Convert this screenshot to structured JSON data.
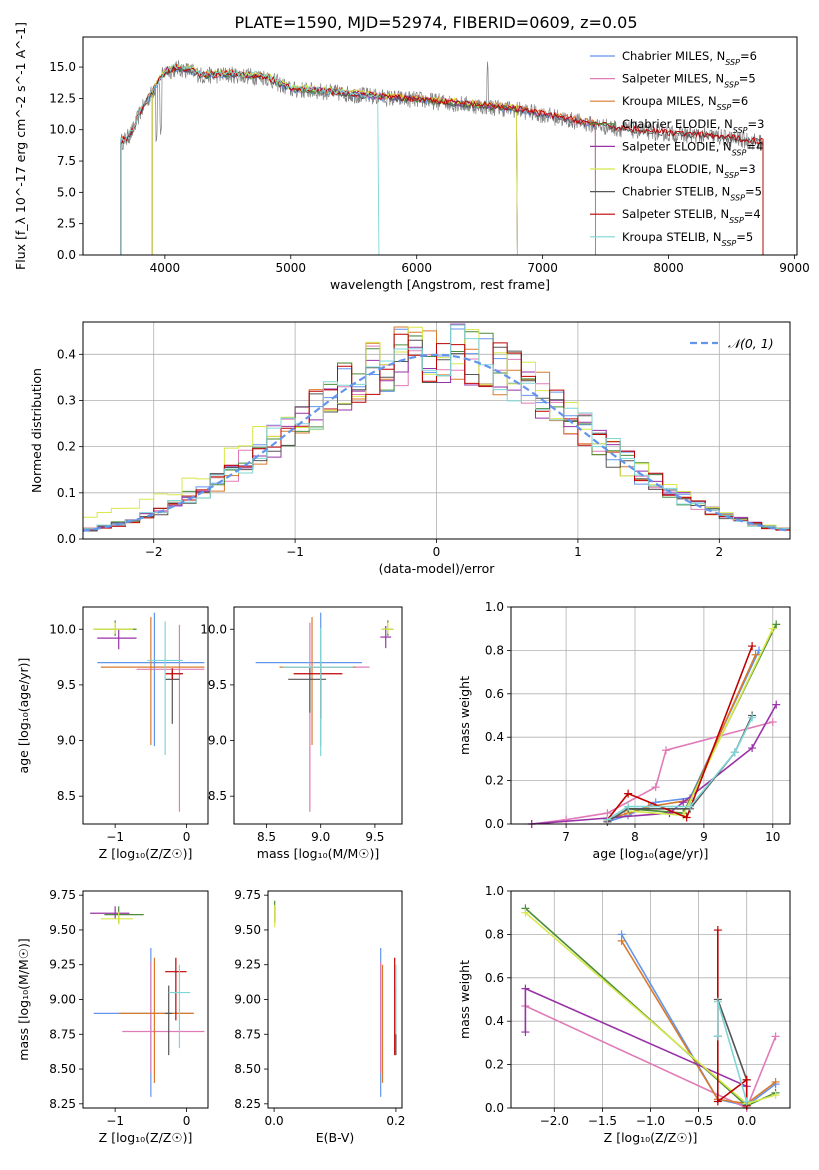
{
  "figure_title": "PLATE=1590, MJD=52974, FIBERID=0609, z=0.05",
  "series_colors": [
    "#6495ed",
    "#e07bb8",
    "#d97a2b",
    "#4a8c3a",
    "#9932a8",
    "#d8e84a",
    "#555555",
    "#c00000",
    "#7fd6d6"
  ],
  "chart_data": [
    {
      "type": "line",
      "id": "spectrum",
      "xlabel": "wavelength [Angstrom, rest frame]",
      "ylabel": "Flux [f_λ 10^-17 erg cm^-2 s^-1 A^-1]",
      "xlim": [
        3350,
        9020
      ],
      "ylim": [
        0,
        17.4
      ],
      "xticks": [
        4000,
        5000,
        6000,
        7000,
        8000,
        9000
      ],
      "yticks": [
        0.0,
        2.5,
        5.0,
        7.5,
        10.0,
        12.5,
        15.0
      ],
      "ytick_labels": [
        "0.0",
        "2.5",
        "5.0",
        "7.5",
        "10.0",
        "12.5",
        "15.0"
      ],
      "legend": [
        {
          "name": "Chabrier MILES, N",
          "sub": "SSP",
          "tail": "=6"
        },
        {
          "name": "Salpeter MILES, N",
          "sub": "SSP",
          "tail": "=5"
        },
        {
          "name": "Kroupa MILES, N",
          "sub": "SSP",
          "tail": "=6"
        },
        {
          "name": "Chabrier ELODIE, N",
          "sub": "SSP",
          "tail": "=3"
        },
        {
          "name": "Salpeter ELODIE, N",
          "sub": "SSP",
          "tail": "=4"
        },
        {
          "name": "Kroupa ELODIE, N",
          "sub": "SSP",
          "tail": "=3"
        },
        {
          "name": "Chabrier STELIB, N",
          "sub": "SSP",
          "tail": "=5"
        },
        {
          "name": "Salpeter STELIB, N",
          "sub": "SSP",
          "tail": "=4"
        },
        {
          "name": "Kroupa STELIB, N",
          "sub": "SSP",
          "tail": "=5"
        }
      ],
      "legend_position": "top-right",
      "observed_spectrum_color": "#808080",
      "spectrum_shape": {
        "x": [
          3650,
          3700,
          3750,
          3800,
          3900,
          4000,
          4100,
          4200,
          4300,
          4500,
          4800,
          5000,
          5200,
          5500,
          5800,
          6000,
          6300,
          6600,
          6800,
          7000,
          7200,
          7400,
          7600,
          8000,
          8400,
          8750
        ],
        "y": [
          9.0,
          9.3,
          10.0,
          11.3,
          13.0,
          14.6,
          14.9,
          14.7,
          14.3,
          14.4,
          14.2,
          13.2,
          13.1,
          12.8,
          12.5,
          12.4,
          12.1,
          11.8,
          11.6,
          11.2,
          10.8,
          10.4,
          10.1,
          9.7,
          9.4,
          9.0
        ]
      },
      "model_cutoffs": [
        {
          "start": 3650,
          "end": 7420
        },
        {
          "start": 3650,
          "end": 7420
        },
        {
          "start": 3650,
          "end": 7420
        },
        {
          "start": 3900,
          "end": 6800
        },
        {
          "start": 3900,
          "end": 6800
        },
        {
          "start": 3900,
          "end": 6800
        },
        {
          "start": 3650,
          "end": 8750
        },
        {
          "start": 3650,
          "end": 8750
        },
        {
          "start": 3650,
          "end": 5700
        }
      ]
    },
    {
      "type": "line",
      "id": "residual-histogram",
      "xlabel": "(data-model)/error",
      "ylabel": "Normed distribution",
      "xlim": [
        -2.5,
        2.5
      ],
      "ylim": [
        0,
        0.47
      ],
      "xticks": [
        -2,
        -1,
        0,
        1,
        2
      ],
      "xtick_labels": [
        "−2",
        "−1",
        "0",
        "1",
        "2"
      ],
      "yticks": [
        0.0,
        0.1,
        0.2,
        0.3,
        0.4
      ],
      "ytick_labels": [
        "0.0",
        "0.1",
        "0.2",
        "0.3",
        "0.4"
      ],
      "grid": true,
      "legend_label": "𝒩(0, 1)",
      "legend_position": "top-right",
      "normal_curve_color": "#6495ed",
      "bin_width": 0.1
    },
    {
      "type": "scatter",
      "id": "age-vs-Z",
      "xlabel": "Z [log₁₀(Z/Z☉)]",
      "ylabel": "age  [log₁₀(age/yr)]",
      "xlim": [
        -1.45,
        0.3
      ],
      "ylim": [
        8.25,
        10.2
      ],
      "xticks": [
        -1,
        0
      ],
      "xtick_labels": [
        "−1",
        "0"
      ],
      "yticks": [
        8.5,
        9.0,
        9.5,
        10.0
      ],
      "ytick_labels": [
        "8.5",
        "9.0",
        "9.5",
        "10.0"
      ],
      "points": [
        {
          "x": -0.45,
          "xerr": [
            0.8,
            0.7
          ],
          "y": 9.7,
          "yerr": [
            0.75,
            0.45
          ]
        },
        {
          "x": -0.1,
          "xerr": [
            0.6,
            0.35
          ],
          "y": 9.64,
          "yerr": [
            1.28,
            0.4
          ]
        },
        {
          "x": -0.5,
          "xerr": [
            0.7,
            0.75
          ],
          "y": 9.66,
          "yerr": [
            0.7,
            0.45
          ]
        },
        {
          "x": -1.0,
          "xerr": [
            0.3,
            0.3
          ],
          "y": 10.0,
          "yerr": [
            0.06,
            0.08
          ]
        },
        {
          "x": -0.95,
          "xerr": [
            0.3,
            0.25
          ],
          "y": 9.92,
          "yerr": [
            0.1,
            0.08
          ]
        },
        {
          "x": -1.0,
          "xerr": [
            0.3,
            0.25
          ],
          "y": 10.0,
          "yerr": [
            0.04,
            0.06
          ]
        },
        {
          "x": -0.2,
          "xerr": [
            0.1,
            0.1
          ],
          "y": 9.55,
          "yerr": [
            0.4,
            0.08
          ]
        },
        {
          "x": -0.2,
          "xerr": [
            0.1,
            0.15
          ],
          "y": 9.6,
          "yerr": [
            0.05,
            0.05
          ]
        },
        {
          "x": -0.3,
          "xerr": [
            0.25,
            0.25
          ],
          "y": 9.72,
          "yerr": [
            0.85,
            0.35
          ]
        }
      ]
    },
    {
      "type": "scatter",
      "id": "age-vs-mass",
      "xlabel": "mass [log₁₀(M/M☉)]",
      "ylabel": "",
      "xlim": [
        8.2,
        9.75
      ],
      "ylim": [
        8.25,
        10.2
      ],
      "xticks": [
        8.5,
        9.0,
        9.5
      ],
      "xtick_labels": [
        "8.5",
        "9.0",
        "9.5"
      ],
      "yticks": [
        8.5,
        9.0,
        9.5,
        10.0
      ],
      "ytick_labels": [
        "8.5",
        "9.0",
        "9.5",
        "10.0"
      ],
      "points": [
        {
          "x": 9.0,
          "xerr": [
            0.6,
            0.38
          ],
          "y": 9.7,
          "yerr": [
            0.75,
            0.45
          ]
        },
        {
          "x": 8.9,
          "xerr": [
            0.25,
            0.55
          ],
          "y": 9.66,
          "yerr": [
            1.3,
            0.4
          ]
        },
        {
          "x": 8.92,
          "xerr": [
            0.3,
            0.4
          ],
          "y": 9.66,
          "yerr": [
            0.7,
            0.45
          ]
        },
        {
          "x": 9.62,
          "xerr": [
            0.05,
            0.05
          ],
          "y": 10.0,
          "yerr": [
            0.06,
            0.08
          ]
        },
        {
          "x": 9.6,
          "xerr": [
            0.05,
            0.05
          ],
          "y": 9.93,
          "yerr": [
            0.1,
            0.1
          ]
        },
        {
          "x": 9.62,
          "xerr": [
            0.06,
            0.05
          ],
          "y": 10.0,
          "yerr": [
            0.04,
            0.06
          ]
        },
        {
          "x": 8.9,
          "xerr": [
            0.2,
            0.15
          ],
          "y": 9.55,
          "yerr": [
            0.3,
            0.1
          ]
        },
        {
          "x": 9.0,
          "xerr": [
            0.25,
            0.2
          ],
          "y": 9.6,
          "yerr": [
            0.4,
            0.1
          ]
        },
        {
          "x": 9.0,
          "xerr": [
            0.35,
            0.3
          ],
          "y": 9.66,
          "yerr": [
            0.8,
            0.35
          ]
        }
      ]
    },
    {
      "type": "line",
      "id": "massweight-vs-age",
      "xlabel": "age  [log₁₀(age/yr)]",
      "ylabel": "mass weight",
      "xlim": [
        6.2,
        10.25
      ],
      "ylim": [
        0,
        1.0
      ],
      "xticks": [
        7,
        8,
        9,
        10
      ],
      "xtick_labels": [
        "7",
        "8",
        "9",
        "10"
      ],
      "yticks": [
        0.0,
        0.2,
        0.4,
        0.6,
        0.8,
        1.0
      ],
      "ytick_labels": [
        "0.0",
        "0.2",
        "0.4",
        "0.6",
        "0.8",
        "1.0"
      ],
      "grid": true,
      "series": [
        {
          "x": [
            7.6,
            7.9,
            8.3,
            8.8,
            9.8
          ],
          "y": [
            0.01,
            0.04,
            0.1,
            0.12,
            0.8
          ]
        },
        {
          "x": [
            6.5,
            7.0,
            7.6,
            8.3,
            8.45,
            10.0
          ],
          "y": [
            0.0,
            0.02,
            0.05,
            0.17,
            0.34,
            0.47
          ]
        },
        {
          "x": [
            7.6,
            7.9,
            8.2,
            8.8,
            9.75
          ],
          "y": [
            0.02,
            0.05,
            0.08,
            0.11,
            0.78
          ]
        },
        {
          "x": [
            7.9,
            8.7,
            10.05
          ],
          "y": [
            0.07,
            0.05,
            0.92
          ]
        },
        {
          "x": [
            6.5,
            8.5,
            8.7,
            9.7,
            10.05
          ],
          "y": [
            0.0,
            0.05,
            0.1,
            0.35,
            0.55
          ]
        },
        {
          "x": [
            7.9,
            8.7,
            10.0
          ],
          "y": [
            0.06,
            0.04,
            0.9
          ]
        },
        {
          "x": [
            7.6,
            7.9,
            8.8,
            9.45,
            9.7
          ],
          "y": [
            0.01,
            0.07,
            0.07,
            0.33,
            0.5
          ]
        },
        {
          "x": [
            7.6,
            7.9,
            8.75,
            9.7
          ],
          "y": [
            0.02,
            0.14,
            0.03,
            0.82
          ]
        },
        {
          "x": [
            7.6,
            7.9,
            8.8,
            9.45,
            9.7
          ],
          "y": [
            0.02,
            0.08,
            0.08,
            0.33,
            0.49
          ]
        }
      ]
    },
    {
      "type": "scatter",
      "id": "mass-vs-Z",
      "xlabel": "Z [log₁₀(Z/Z☉)]",
      "ylabel": "mass [log₁₀(M/M☉)]",
      "xlim": [
        -1.45,
        0.3
      ],
      "ylim": [
        8.22,
        9.78
      ],
      "xticks": [
        -1,
        0
      ],
      "xtick_labels": [
        "−1",
        "0"
      ],
      "yticks": [
        8.25,
        8.5,
        8.75,
        9.0,
        9.25,
        9.5,
        9.75
      ],
      "ytick_labels": [
        "8.25",
        "8.50",
        "8.75",
        "9.00",
        "9.25",
        "9.50",
        "9.75"
      ],
      "points": [
        {
          "x": -0.5,
          "xerr": [
            0.8,
            0.6
          ],
          "y": 8.9,
          "yerr": [
            0.6,
            0.47
          ]
        },
        {
          "x": -0.5,
          "xerr": [
            0.4,
            0.75
          ],
          "y": 8.77,
          "yerr": [
            0.3,
            0.5
          ]
        },
        {
          "x": -0.45,
          "xerr": [
            0.5,
            0.55
          ],
          "y": 8.9,
          "yerr": [
            0.5,
            0.4
          ]
        },
        {
          "x": -0.95,
          "xerr": [
            0.2,
            0.35
          ],
          "y": 9.61,
          "yerr": [
            0.06,
            0.06
          ]
        },
        {
          "x": -1.0,
          "xerr": [
            0.35,
            0.2
          ],
          "y": 9.62,
          "yerr": [
            0.04,
            0.05
          ]
        },
        {
          "x": -0.95,
          "xerr": [
            0.25,
            0.2
          ],
          "y": 9.58,
          "yerr": [
            0.04,
            0.05
          ]
        },
        {
          "x": -0.25,
          "xerr": [
            0.05,
            0.05
          ],
          "y": 8.9,
          "yerr": [
            0.3,
            0.2
          ]
        },
        {
          "x": -0.15,
          "xerr": [
            0.15,
            0.15
          ],
          "y": 9.2,
          "yerr": [
            0.35,
            0.1
          ]
        },
        {
          "x": -0.1,
          "xerr": [
            0.15,
            0.15
          ],
          "y": 9.05,
          "yerr": [
            0.4,
            0.2
          ]
        }
      ]
    },
    {
      "type": "scatter",
      "id": "mass-vs-EBV",
      "xlabel": "E(B-V)",
      "ylabel": "",
      "xlim": [
        -0.01,
        0.21
      ],
      "ylim": [
        8.22,
        9.78
      ],
      "xticks": [
        0.0,
        0.2
      ],
      "xtick_labels": [
        "0.0",
        "0.2"
      ],
      "yticks": [
        8.25,
        8.5,
        8.75,
        9.0,
        9.25,
        9.5,
        9.75
      ],
      "ytick_labels": [
        "8.25",
        "8.50",
        "8.75",
        "9.00",
        "9.25",
        "9.50",
        "9.75"
      ],
      "points": [
        {
          "x": 0.175,
          "y": 8.9,
          "yerr": [
            0.6,
            0.47
          ]
        },
        {
          "x": 0.175,
          "y": 8.77,
          "yerr": [
            0.3,
            0.5
          ]
        },
        {
          "x": 0.178,
          "y": 8.85,
          "yerr": [
            0.45,
            0.4
          ]
        },
        {
          "x": 0.001,
          "y": 9.61,
          "yerr": [
            0.06,
            0.1
          ]
        },
        {
          "x": 0.001,
          "y": 9.62,
          "yerr": [
            0.05,
            0.05
          ]
        },
        {
          "x": 0.001,
          "y": 9.58,
          "yerr": [
            0.06,
            0.1
          ]
        },
        {
          "x": 0.2,
          "y": 8.9,
          "yerr": [
            0.3,
            0.2
          ]
        },
        {
          "x": 0.198,
          "y": 9.0,
          "yerr": [
            0.4,
            0.3
          ]
        },
        {
          "x": 0.2,
          "y": 9.05,
          "yerr": [
            0.3,
            0.2
          ]
        }
      ]
    },
    {
      "type": "line",
      "id": "massweight-vs-Z",
      "xlabel": "Z [log₁₀(Z/Z☉)]",
      "ylabel": "mass weight",
      "xlim": [
        -2.45,
        0.45
      ],
      "ylim": [
        0,
        1.0
      ],
      "xticks": [
        -2.0,
        -1.5,
        -1.0,
        -0.5,
        0.0
      ],
      "xtick_labels": [
        "−2.0",
        "−1.5",
        "−1.0",
        "−0.5",
        "0.0"
      ],
      "yticks": [
        0.0,
        0.2,
        0.4,
        0.6,
        0.8,
        1.0
      ],
      "ytick_labels": [
        "0.0",
        "0.2",
        "0.4",
        "0.6",
        "0.8",
        "1.0"
      ],
      "grid": true,
      "series": [
        {
          "x": [
            -1.3,
            -0.3,
            0.0,
            0.3
          ],
          "y": [
            0.8,
            0.04,
            0.01,
            0.11
          ]
        },
        {
          "x": [
            -2.3,
            0.0,
            0.3
          ],
          "y": [
            0.47,
            0.0,
            0.33
          ]
        },
        {
          "x": [
            -1.3,
            -0.3,
            0.0,
            0.3
          ],
          "y": [
            0.77,
            0.04,
            0.02,
            0.12
          ]
        },
        {
          "x": [
            -2.3,
            0.0,
            0.3
          ],
          "y": [
            0.92,
            0.01,
            0.07
          ]
        },
        {
          "x": [
            -2.3,
            -2.3,
            0.0
          ],
          "y": [
            0.35,
            0.55,
            0.1
          ]
        },
        {
          "x": [
            -2.3,
            0.0,
            0.3
          ],
          "y": [
            0.9,
            0.02,
            0.06
          ]
        },
        {
          "x": [
            -0.3,
            -0.3,
            0.0
          ],
          "y": [
            0.33,
            0.5,
            0.13
          ]
        },
        {
          "x": [
            -0.3,
            -0.3,
            0.0,
            0.0
          ],
          "y": [
            0.82,
            0.03,
            0.13,
            0.01
          ]
        },
        {
          "x": [
            -0.3,
            -0.3,
            0.0
          ],
          "y": [
            0.33,
            0.49,
            0.03
          ]
        }
      ]
    }
  ]
}
